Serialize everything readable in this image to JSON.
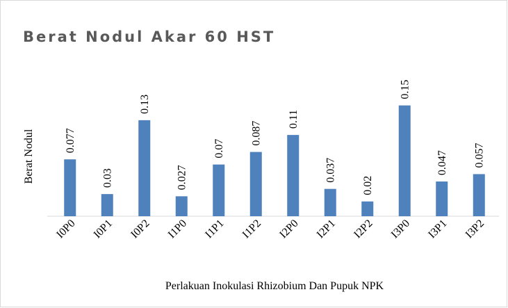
{
  "chart_data": {
    "type": "bar",
    "title": "Berat Nodul Akar 60 HST",
    "x_label": "Perlakuan Inokulasi Rhizobium Dan Pupuk NPK",
    "y_label": "Berat Nodul",
    "categories": [
      "I0P0",
      "I0P1",
      "I0P2",
      "I1P0",
      "I1P1",
      "I1P2",
      "I2P0",
      "I2P1",
      "I2P2",
      "I3P0",
      "I3P1",
      "I3P2"
    ],
    "values": [
      0.077,
      0.03,
      0.13,
      0.027,
      0.07,
      0.087,
      0.11,
      0.037,
      0.02,
      0.15,
      0.047,
      0.057
    ],
    "color": "#4f81bd",
    "ylim": [
      0,
      0.16
    ]
  }
}
